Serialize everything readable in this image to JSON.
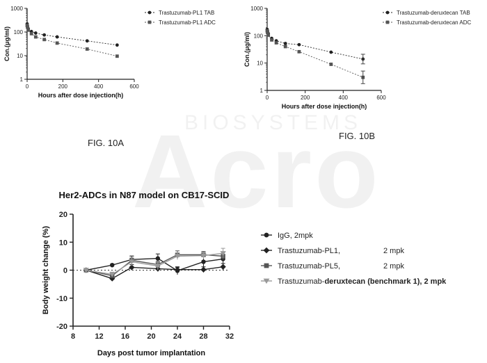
{
  "figure_captions": {
    "a": "FIG. 10A",
    "b": "FIG. 10B"
  },
  "watermark": {
    "brand": "Acro",
    "sub": "BIOSYSTEMS"
  },
  "colors": {
    "series_dark": "#222222",
    "series_mid": "#555555",
    "series_light": "#999999"
  },
  "chart_data": [
    {
      "type": "line",
      "title": "",
      "xlabel": "Hours after dose injection(h)",
      "ylabel": "Con.(μg/ml)",
      "xlim": [
        0,
        600
      ],
      "ylim": [
        1,
        1000
      ],
      "yscale": "log",
      "xticks": [
        0,
        200,
        400,
        600
      ],
      "xtick_labels": [
        "0",
        "200",
        "400",
        "600"
      ],
      "yticks": [
        1,
        10,
        100,
        1000
      ],
      "ytick_labels": [
        "1",
        "10",
        "100",
        "1000"
      ],
      "legend_position": "top-right",
      "series": [
        {
          "name": "Trastuzumab-PL1 TAB",
          "marker": "circle",
          "x": [
            0.1,
            2,
            6,
            24,
            48,
            96,
            168,
            336,
            504
          ],
          "y": [
            220,
            180,
            140,
            105,
            90,
            75,
            62,
            42,
            28
          ]
        },
        {
          "name": "Trastuzumab-PL1 ADC",
          "marker": "square",
          "x": [
            0.1,
            2,
            6,
            24,
            48,
            96,
            168,
            336,
            504
          ],
          "y": [
            190,
            160,
            120,
            85,
            62,
            48,
            34,
            19,
            9.5
          ]
        }
      ]
    },
    {
      "type": "line",
      "title": "",
      "xlabel": "Hours after dose injection(h)",
      "ylabel": "Con.(μg/ml)",
      "xlim": [
        0,
        600
      ],
      "ylim": [
        1,
        1000
      ],
      "yscale": "log",
      "xticks": [
        0,
        200,
        400,
        600
      ],
      "xtick_labels": [
        "0",
        "200",
        "400",
        "600"
      ],
      "yticks": [
        1,
        10,
        100,
        1000
      ],
      "ytick_labels": [
        "1",
        "10",
        "100",
        "1000"
      ],
      "legend_position": "top-right",
      "series": [
        {
          "name": "Trastuzumab-deruxtecan TAB",
          "marker": "circle",
          "x": [
            0.1,
            2,
            6,
            24,
            48,
            96,
            168,
            336,
            504
          ],
          "y": [
            170,
            150,
            120,
            80,
            65,
            52,
            47,
            25,
            14
          ]
        },
        {
          "name": "Trastuzumab-deruxtecan ADC",
          "marker": "square",
          "x": [
            0.1,
            2,
            6,
            24,
            48,
            96,
            168,
            336,
            504
          ],
          "y": [
            150,
            130,
            105,
            70,
            55,
            40,
            26,
            9,
            3
          ]
        }
      ]
    },
    {
      "type": "line",
      "title": "Her2-ADCs in N87 model on CB17-SCID",
      "xlabel": "Days post tumor implantation",
      "ylabel": "Body weight change (%)",
      "xlim": [
        8,
        32
      ],
      "ylim": [
        -20,
        20
      ],
      "xticks": [
        8,
        12,
        16,
        20,
        24,
        28,
        32
      ],
      "yticks": [
        -20,
        -10,
        0,
        10,
        20
      ],
      "reference_line": 0,
      "legend_position": "right",
      "series": [
        {
          "name": "IgG, 2mpk",
          "marker": "circle",
          "x": [
            10,
            14,
            17,
            21,
            24,
            28,
            31
          ],
          "y": [
            0,
            1.8,
            3.8,
            4.2,
            -0.2,
            3.0,
            4.0
          ]
        },
        {
          "name": "Trastuzumab-PL1,",
          "dose": "2 mpk",
          "marker": "diamond",
          "x": [
            10,
            14,
            17,
            21,
            24,
            28,
            31
          ],
          "y": [
            0,
            -3.0,
            1.0,
            0.5,
            0.2,
            0.2,
            1.2
          ]
        },
        {
          "name": "Trastuzumab-PL5,",
          "dose": "2 mpk",
          "marker": "square",
          "x": [
            10,
            14,
            17,
            21,
            24,
            28,
            31
          ],
          "y": [
            0,
            -2.0,
            3.5,
            2.0,
            5.5,
            5.5,
            5.0
          ]
        },
        {
          "name_prefix": "Trastuzumab-",
          "name_bold": "deruxtecan (benchmark 1), 2 mpk",
          "marker": "triangle-down",
          "x": [
            10,
            14,
            17,
            21,
            24,
            28,
            31
          ],
          "y": [
            0,
            -1.5,
            3.0,
            1.5,
            5.0,
            5.2,
            6.0
          ]
        }
      ]
    }
  ]
}
